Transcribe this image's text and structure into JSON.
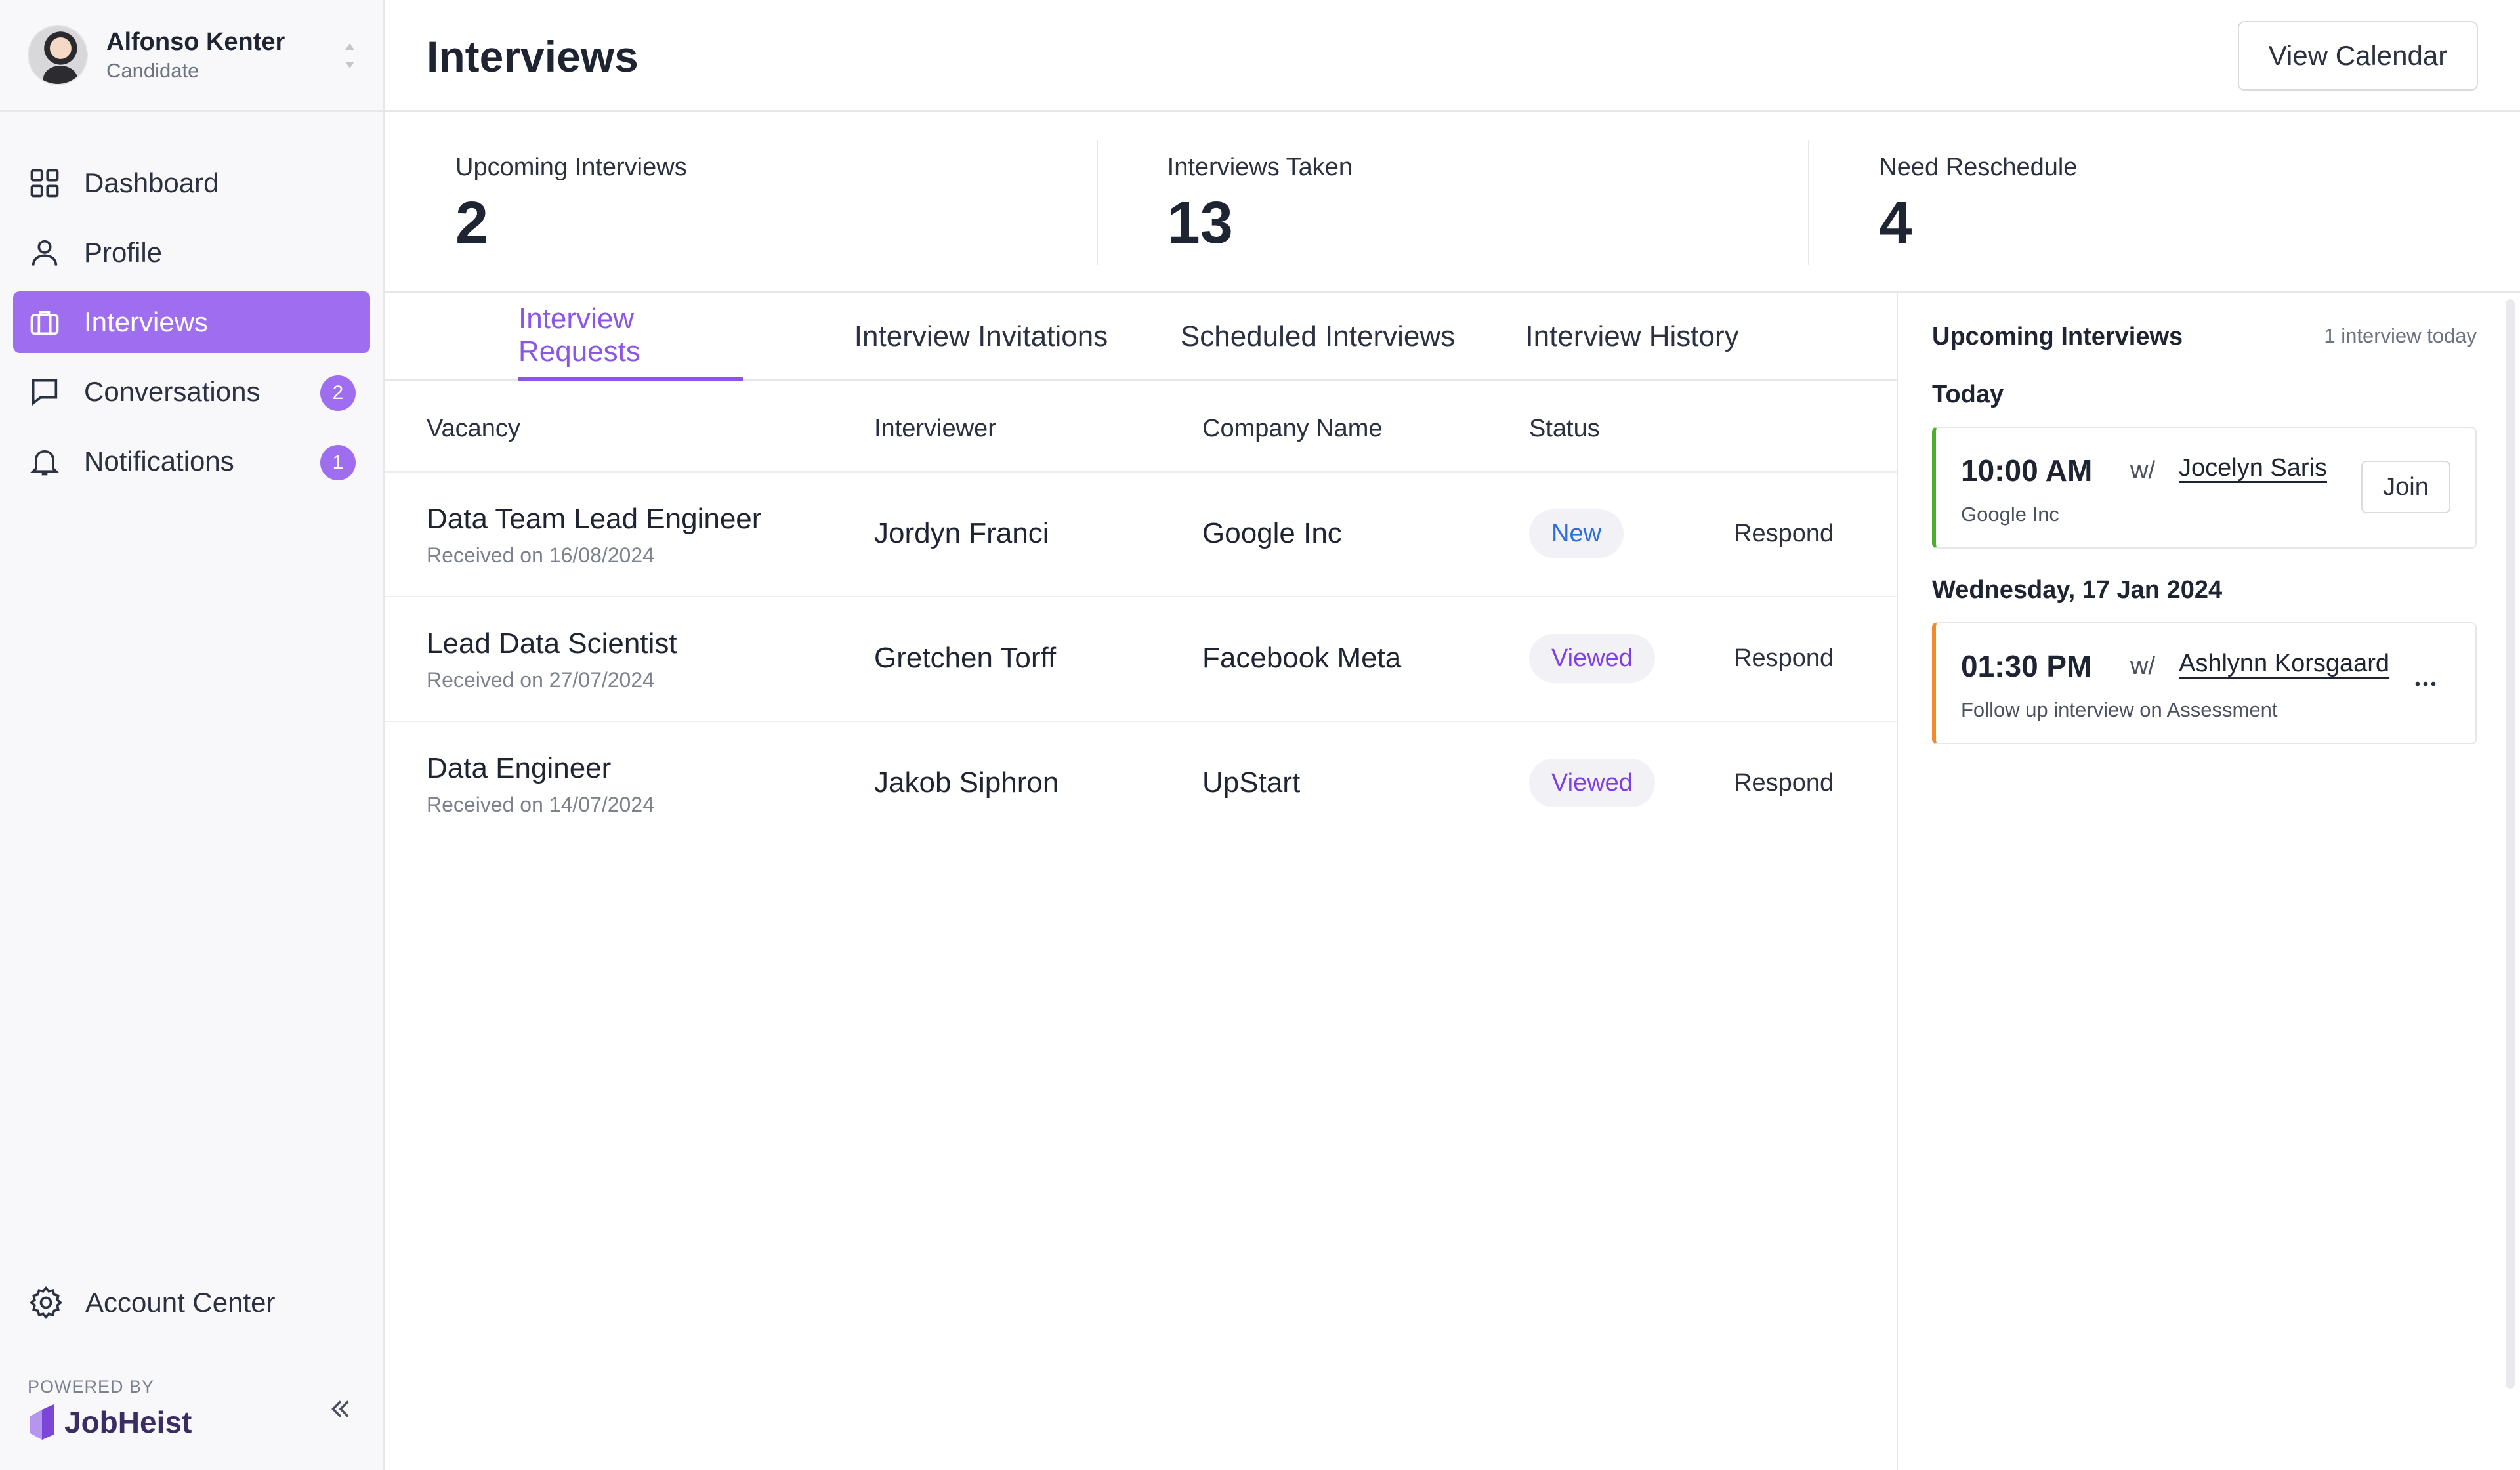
{
  "user": {
    "name": "Alfonso Kenter",
    "role": "Candidate"
  },
  "nav": {
    "items": [
      {
        "label": "Dashboard",
        "icon": "grid-icon"
      },
      {
        "label": "Profile",
        "icon": "user-icon"
      },
      {
        "label": "Interviews",
        "icon": "briefcase-icon",
        "active": true
      },
      {
        "label": "Conversations",
        "icon": "chat-icon",
        "badge": "2"
      },
      {
        "label": "Notifications",
        "icon": "bell-icon",
        "badge": "1"
      }
    ],
    "account": "Account Center",
    "powered_by": "POWERED BY",
    "brand": "JobHeist"
  },
  "header": {
    "title": "Interviews",
    "calendar_button": "View Calendar"
  },
  "stats": [
    {
      "label": "Upcoming Interviews",
      "value": "2"
    },
    {
      "label": "Interviews Taken",
      "value": "13"
    },
    {
      "label": "Need Reschedule",
      "value": "4"
    }
  ],
  "tabs": [
    {
      "label": "Interview Requests",
      "active": true
    },
    {
      "label": "Interview Invitations"
    },
    {
      "label": "Scheduled Interviews"
    },
    {
      "label": "Interview History"
    }
  ],
  "table": {
    "columns": [
      "Vacancy",
      "Interviewer",
      "Company Name",
      "Status"
    ],
    "rows": [
      {
        "vacancy": "Data Team Lead Engineer",
        "received": "Received on 16/08/2024",
        "interviewer": "Jordyn Franci",
        "company": "Google Inc",
        "status": "New",
        "action": "Respond"
      },
      {
        "vacancy": "Lead Data Scientist",
        "received": "Received on 27/07/2024",
        "interviewer": "Gretchen Torff",
        "company": "Facebook Meta",
        "status": "Viewed",
        "action": "Respond"
      },
      {
        "vacancy": "Data Engineer",
        "received": "Received on 14/07/2024",
        "interviewer": "Jakob Siphron",
        "company": "UpStart",
        "status": "Viewed",
        "action": "Respond"
      }
    ]
  },
  "panel": {
    "title": "Upcoming Interviews",
    "note": "1 interview today",
    "days": [
      {
        "label": "Today",
        "event": {
          "time": "10:00 AM",
          "with": "w/",
          "name": "Jocelyn Saris",
          "sub": "Google Inc",
          "action": "Join",
          "accent": "#4aaf2d"
        }
      },
      {
        "label": "Wednesday, 17 Jan 2024",
        "event": {
          "time": "01:30 PM",
          "with": "w/",
          "name": "Ashlynn Korsgaard",
          "sub": "Follow up interview on Assessment",
          "accent": "#f28a2c"
        }
      }
    ]
  },
  "colors": {
    "accent": "#9f6ef0",
    "new_status": "#2c6dde",
    "viewed_status": "#7d3ee6"
  }
}
